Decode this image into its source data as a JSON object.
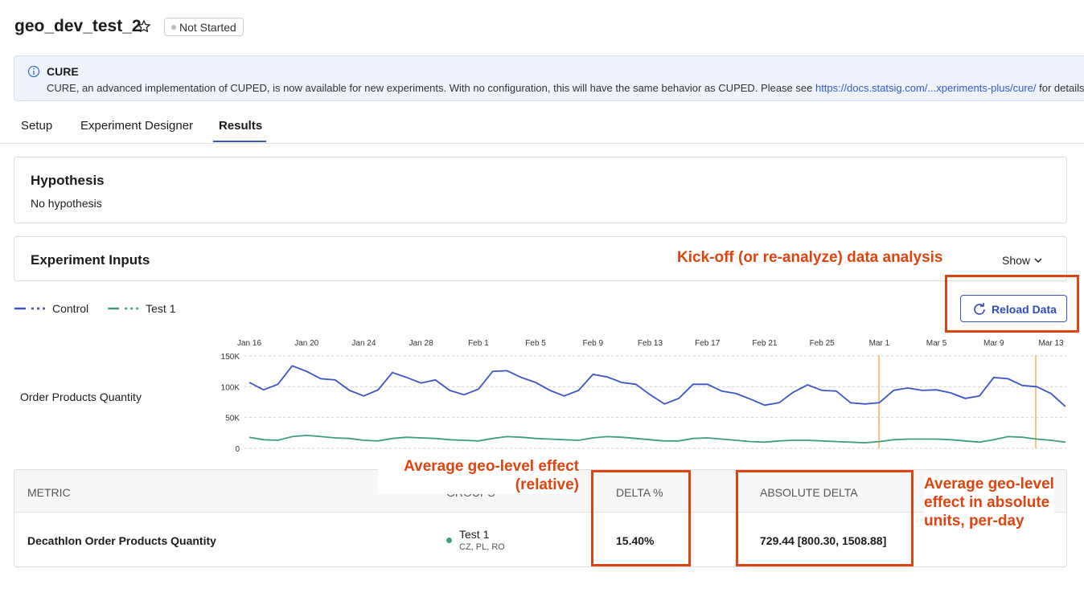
{
  "header": {
    "title": "geo_dev_test_2",
    "status": "Not Started"
  },
  "banner": {
    "title": "CURE",
    "text": "CURE, an advanced implementation of CUPED, is now available for new experiments. With no configuration, this will have the same behavior as CUPED. Please see ",
    "link": "https://docs.statsig.com/...xperiments-plus/cure/",
    "text_after": " for details on s"
  },
  "tabs": [
    "Setup",
    "Experiment Designer",
    "Results"
  ],
  "hypothesis": {
    "title": "Hypothesis",
    "text": "No hypothesis"
  },
  "inputs": {
    "title": "Experiment Inputs",
    "toggle": "Show"
  },
  "reload": "Reload Data",
  "annotations": [
    "Kick-off (or re-analyze) data analysis",
    "Average geo-level effect\n(relative)",
    "Average geo-level\neffect in absolute\nunits, per-day"
  ],
  "chart_data": {
    "type": "line",
    "y_label": "Order Products Quantity",
    "categories": [
      "Jan 16",
      null,
      null,
      null,
      "Jan 20",
      null,
      null,
      null,
      "Jan 24",
      null,
      null,
      null,
      "Jan 28",
      null,
      null,
      null,
      "Feb 1",
      null,
      null,
      null,
      "Feb 5",
      null,
      null,
      null,
      "Feb 9",
      null,
      null,
      null,
      "Feb 13",
      null,
      null,
      null,
      "Feb 17",
      null,
      null,
      null,
      "Feb 21",
      null,
      null,
      null,
      "Feb 25",
      null,
      null,
      null,
      "Mar 1",
      null,
      null,
      null,
      "Mar 5",
      null,
      null,
      null,
      "Mar 9",
      null,
      null,
      null,
      "Mar 13",
      null
    ],
    "series": [
      {
        "name": "Control",
        "color": "#3b55c9",
        "values": [
          107000,
          95000,
          104000,
          134000,
          125000,
          113000,
          111000,
          94000,
          85000,
          95000,
          123000,
          115000,
          106000,
          111000,
          94000,
          87000,
          96000,
          125000,
          126000,
          115000,
          107000,
          94000,
          85000,
          94000,
          120000,
          116000,
          107000,
          104000,
          87000,
          72000,
          81000,
          104000,
          104000,
          93000,
          89000,
          80000,
          70000,
          74000,
          91000,
          103000,
          94000,
          93000,
          74000,
          72000,
          74000,
          94000,
          98000,
          94000,
          95000,
          90000,
          81000,
          85000,
          115000,
          113000,
          102000,
          100000,
          89000,
          68000
        ]
      },
      {
        "name": "Test 1",
        "color": "#3f9e7c",
        "values": [
          18000,
          14000,
          13000,
          19000,
          21000,
          19000,
          17000,
          16000,
          13000,
          12000,
          16000,
          18000,
          17000,
          16000,
          14000,
          13000,
          12000,
          16000,
          19000,
          18000,
          16000,
          15000,
          14000,
          13000,
          17000,
          19000,
          18000,
          16000,
          14000,
          12000,
          12000,
          16000,
          17000,
          15000,
          13000,
          11000,
          10000,
          12000,
          13000,
          13000,
          12000,
          11000,
          10000,
          9000,
          11000,
          14000,
          15000,
          15000,
          15000,
          14000,
          12000,
          10000,
          14000,
          19000,
          18000,
          15000,
          13000,
          10000
        ]
      }
    ],
    "ylim": [
      0,
      150000
    ],
    "yticks": [
      0,
      {
        "value": 50000,
        "label": "50K"
      },
      {
        "value": 100000,
        "label": "100K"
      },
      {
        "value": 150000,
        "label": "150K"
      }
    ],
    "grid": true
  },
  "table": {
    "headers": [
      "METRIC",
      "GROUPS",
      "DELTA %",
      "ABSOLUTE DELTA"
    ],
    "rows": [
      {
        "metric": "Decathlon Order Products Quantity",
        "group": "Test 1",
        "regions": "CZ, PL, RO",
        "delta": "15.40%",
        "absolute_delta": "729.44 [800.30, 1508.88]"
      }
    ]
  }
}
